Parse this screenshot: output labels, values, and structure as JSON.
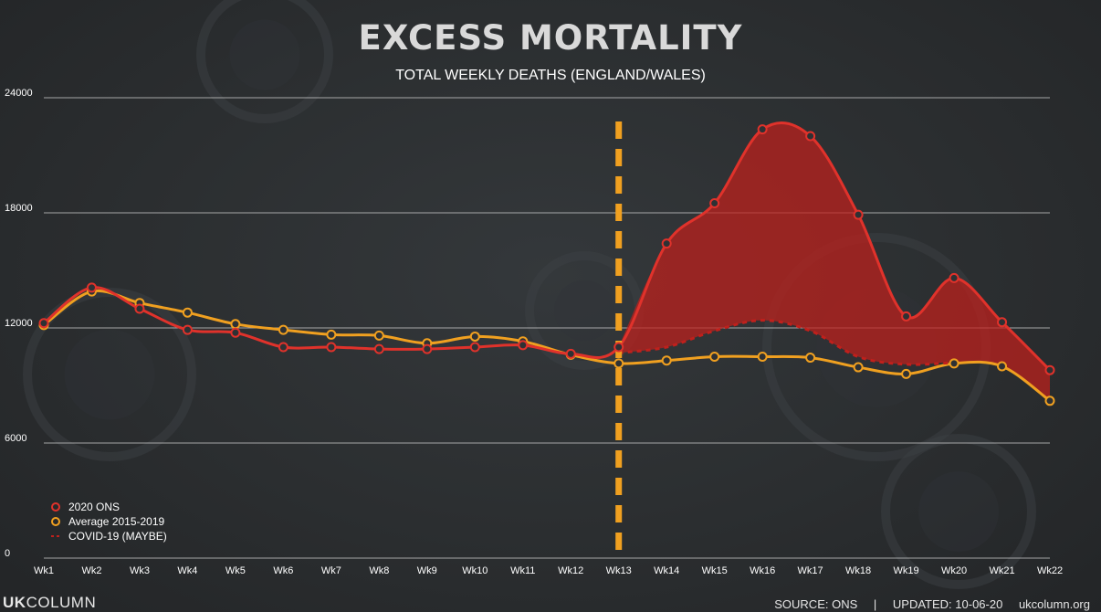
{
  "chart_data": {
    "type": "line",
    "title": "EXCESS MORTALITY",
    "subtitle": "TOTAL WEEKLY DEATHS (ENGLAND/WALES)",
    "categories": [
      "Wk1",
      "Wk2",
      "Wk3",
      "Wk4",
      "Wk5",
      "Wk6",
      "Wk7",
      "Wk8",
      "Wk9",
      "Wk10",
      "Wk11",
      "Wk12",
      "Wk13",
      "Wk14",
      "Wk15",
      "Wk16",
      "Wk17",
      "Wk18",
      "Wk19",
      "Wk20",
      "Wk21",
      "Wk22"
    ],
    "ylim": [
      0,
      24000
    ],
    "yticks": [
      "0",
      "6000",
      "12000",
      "18000",
      "24000"
    ],
    "grid": true,
    "legend_position": "bottom-left",
    "series": [
      {
        "name": "2020 ONS",
        "color": "#e0322b",
        "values": [
          12250,
          14100,
          13000,
          11900,
          11750,
          11000,
          11000,
          10900,
          10900,
          11000,
          11100,
          10650,
          11000,
          16400,
          18500,
          22350,
          22000,
          17900,
          12600,
          14600,
          12300,
          9800
        ]
      },
      {
        "name": "Average 2015-2019",
        "color": "#f0a020",
        "values": [
          12150,
          13900,
          13300,
          12800,
          12200,
          11900,
          11650,
          11600,
          11200,
          11550,
          11300,
          10600,
          10150,
          10300,
          10500,
          10500,
          10450,
          9950,
          9600,
          10150,
          10000,
          8200
        ]
      },
      {
        "name": "COVID-19 (MAYBE)",
        "color": "#c0201c",
        "style": "dashed",
        "values": [
          null,
          null,
          null,
          null,
          null,
          null,
          null,
          null,
          null,
          null,
          null,
          null,
          10700,
          11000,
          11850,
          12400,
          11850,
          10500,
          10100,
          10200,
          null,
          null
        ]
      }
    ],
    "annotation": {
      "type": "vertical-dashed-line",
      "at": "Wk13",
      "color": "#f0a020"
    },
    "shaded_area": {
      "between": [
        "2020 ONS",
        "COVID-19 (MAYBE)"
      ],
      "from": "Wk13",
      "to": "Wk22",
      "color": "#c0201c"
    }
  },
  "footer": {
    "brand_uk": "UK",
    "brand_column": "COLUMN",
    "source": "SOURCE: ONS",
    "separator": "|",
    "updated": "UPDATED: 10-06-20",
    "site": "ukcolumn.org"
  }
}
